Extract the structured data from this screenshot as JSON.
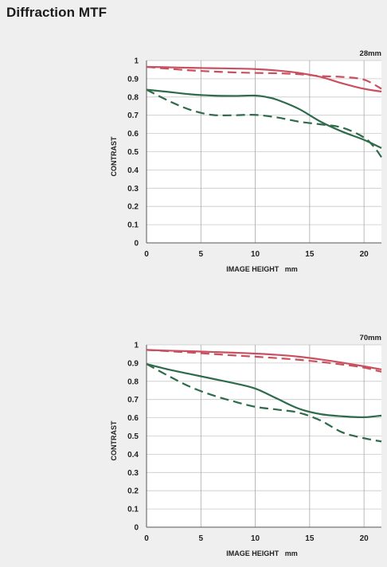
{
  "page": {
    "title": "Diffraction MTF"
  },
  "colors": {
    "sagittal_high": "#c8505f",
    "meridional_high": "#c8505f",
    "sagittal_low": "#2e6b4a",
    "meridional_low": "#2e6b4a",
    "grid": "#c8c8c8",
    "plot_bg": "#ffffff"
  },
  "chart_data": [
    {
      "type": "line",
      "focal_length": "28mm",
      "xlabel": "IMAGE HEIGHT   mm",
      "ylabel": "CONTRAST",
      "xlim": [
        0,
        21.6
      ],
      "ylim": [
        0,
        1
      ],
      "xticks": [
        0,
        5,
        10,
        15,
        20
      ],
      "yticks": [
        0,
        0.1,
        0.2,
        0.3,
        0.4,
        0.5,
        0.6,
        0.7,
        0.8,
        0.9,
        1
      ],
      "ytick_labels": [
        "0",
        "0.1",
        "0.2",
        "0.3",
        "0.4",
        "0.5",
        "0.6",
        "0.7",
        "0.8",
        "0.9",
        "1"
      ],
      "xtick_labels": [
        "0",
        "5",
        "10",
        "15",
        "20"
      ],
      "grid": true,
      "series": [
        {
          "color": "red",
          "dash": false,
          "x": [
            0,
            2,
            4,
            6,
            8,
            10,
            12,
            14,
            16,
            18,
            20,
            21.6
          ],
          "y": [
            0.965,
            0.963,
            0.96,
            0.958,
            0.956,
            0.953,
            0.945,
            0.932,
            0.91,
            0.875,
            0.845,
            0.83
          ]
        },
        {
          "color": "red",
          "dash": true,
          "x": [
            0,
            2,
            4,
            6,
            8,
            10,
            12,
            14,
            16,
            18,
            20,
            21.6
          ],
          "y": [
            0.965,
            0.955,
            0.946,
            0.94,
            0.935,
            0.932,
            0.93,
            0.925,
            0.915,
            0.91,
            0.895,
            0.845
          ]
        },
        {
          "color": "green",
          "dash": false,
          "x": [
            0,
            2,
            4,
            6,
            8,
            10,
            11,
            12,
            14,
            16,
            18,
            20,
            21.6
          ],
          "y": [
            0.84,
            0.828,
            0.815,
            0.808,
            0.806,
            0.808,
            0.8,
            0.785,
            0.735,
            0.665,
            0.61,
            0.565,
            0.52
          ]
        },
        {
          "color": "green",
          "dash": true,
          "x": [
            0,
            2,
            4,
            6,
            8,
            10,
            12,
            14,
            16,
            18,
            20,
            21,
            21.6
          ],
          "y": [
            0.84,
            0.78,
            0.73,
            0.702,
            0.7,
            0.702,
            0.688,
            0.665,
            0.65,
            0.632,
            0.578,
            0.52,
            0.47
          ]
        }
      ]
    },
    {
      "type": "line",
      "focal_length": "70mm",
      "xlabel": "IMAGE HEIGHT   mm",
      "ylabel": "CONTRAST",
      "xlim": [
        0,
        21.6
      ],
      "ylim": [
        0,
        1
      ],
      "xticks": [
        0,
        5,
        10,
        15,
        20
      ],
      "yticks": [
        0,
        0.1,
        0.2,
        0.3,
        0.4,
        0.5,
        0.6,
        0.7,
        0.8,
        0.9,
        1
      ],
      "ytick_labels": [
        "0",
        "0.1",
        "0.2",
        "0.3",
        "0.4",
        "0.5",
        "0.6",
        "0.7",
        "0.8",
        "0.9",
        "1"
      ],
      "xtick_labels": [
        "0",
        "5",
        "10",
        "15",
        "20"
      ],
      "grid": true,
      "series": [
        {
          "color": "red",
          "dash": false,
          "x": [
            0,
            2,
            4,
            6,
            8,
            10,
            12,
            14,
            16,
            18,
            20,
            21.6
          ],
          "y": [
            0.972,
            0.968,
            0.965,
            0.961,
            0.957,
            0.952,
            0.945,
            0.935,
            0.92,
            0.902,
            0.882,
            0.865
          ]
        },
        {
          "color": "red",
          "dash": true,
          "x": [
            0,
            2,
            4,
            6,
            8,
            10,
            12,
            14,
            16,
            18,
            20,
            21.6
          ],
          "y": [
            0.972,
            0.965,
            0.958,
            0.95,
            0.942,
            0.935,
            0.927,
            0.918,
            0.906,
            0.892,
            0.875,
            0.852
          ]
        },
        {
          "color": "green",
          "dash": false,
          "x": [
            0,
            2,
            4,
            6,
            8,
            10,
            12,
            14,
            16,
            18,
            20,
            21.6
          ],
          "y": [
            0.895,
            0.865,
            0.84,
            0.815,
            0.79,
            0.76,
            0.705,
            0.65,
            0.62,
            0.608,
            0.603,
            0.612
          ]
        },
        {
          "color": "green",
          "dash": true,
          "x": [
            0,
            2,
            4,
            6,
            8,
            10,
            12,
            14,
            16,
            18,
            20,
            21.6
          ],
          "y": [
            0.895,
            0.83,
            0.77,
            0.725,
            0.69,
            0.66,
            0.645,
            0.628,
            0.585,
            0.52,
            0.488,
            0.47
          ]
        }
      ]
    }
  ]
}
